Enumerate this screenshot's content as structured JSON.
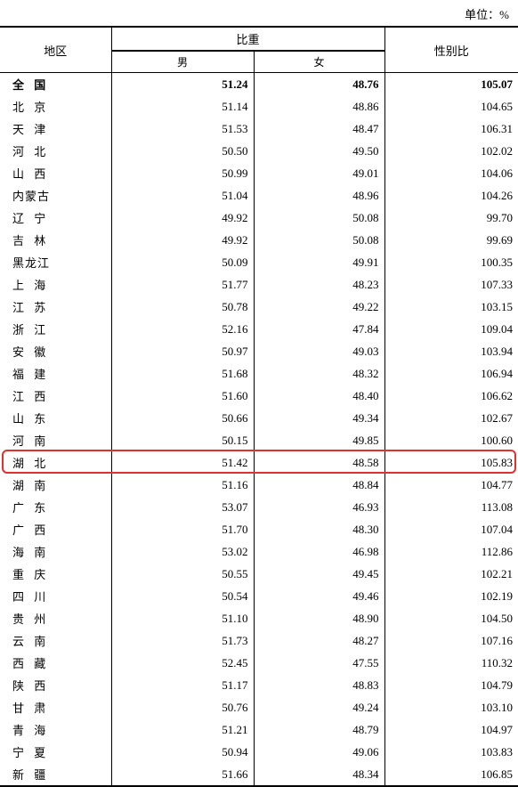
{
  "unit_label": "单位：%",
  "columns": {
    "region": "地区",
    "proportion": "比重",
    "male": "男",
    "female": "女",
    "ratio": "性别比"
  },
  "highlight_region": "湖 北",
  "highlight_color": "#e03030",
  "rows": [
    {
      "region": "全  国",
      "male": "51.24",
      "female": "48.76",
      "ratio": "105.07",
      "total": true
    },
    {
      "region": "北  京",
      "male": "51.14",
      "female": "48.86",
      "ratio": "104.65"
    },
    {
      "region": "天  津",
      "male": "51.53",
      "female": "48.47",
      "ratio": "106.31"
    },
    {
      "region": "河  北",
      "male": "50.50",
      "female": "49.50",
      "ratio": "102.02"
    },
    {
      "region": "山  西",
      "male": "50.99",
      "female": "49.01",
      "ratio": "104.06"
    },
    {
      "region": "内蒙古",
      "male": "51.04",
      "female": "48.96",
      "ratio": "104.26",
      "tight": true
    },
    {
      "region": "辽  宁",
      "male": "49.92",
      "female": "50.08",
      "ratio": "99.70"
    },
    {
      "region": "吉  林",
      "male": "49.92",
      "female": "50.08",
      "ratio": "99.69"
    },
    {
      "region": "黑龙江",
      "male": "50.09",
      "female": "49.91",
      "ratio": "100.35",
      "tight": true
    },
    {
      "region": "上  海",
      "male": "51.77",
      "female": "48.23",
      "ratio": "107.33"
    },
    {
      "region": "江  苏",
      "male": "50.78",
      "female": "49.22",
      "ratio": "103.15"
    },
    {
      "region": "浙  江",
      "male": "52.16",
      "female": "47.84",
      "ratio": "109.04"
    },
    {
      "region": "安  徽",
      "male": "50.97",
      "female": "49.03",
      "ratio": "103.94"
    },
    {
      "region": "福  建",
      "male": "51.68",
      "female": "48.32",
      "ratio": "106.94"
    },
    {
      "region": "江  西",
      "male": "51.60",
      "female": "48.40",
      "ratio": "106.62"
    },
    {
      "region": "山  东",
      "male": "50.66",
      "female": "49.34",
      "ratio": "102.67"
    },
    {
      "region": "河  南",
      "male": "50.15",
      "female": "49.85",
      "ratio": "100.60"
    },
    {
      "region": "湖  北",
      "male": "51.42",
      "female": "48.58",
      "ratio": "105.83"
    },
    {
      "region": "湖  南",
      "male": "51.16",
      "female": "48.84",
      "ratio": "104.77"
    },
    {
      "region": "广  东",
      "male": "53.07",
      "female": "46.93",
      "ratio": "113.08"
    },
    {
      "region": "广  西",
      "male": "51.70",
      "female": "48.30",
      "ratio": "107.04"
    },
    {
      "region": "海  南",
      "male": "53.02",
      "female": "46.98",
      "ratio": "112.86"
    },
    {
      "region": "重  庆",
      "male": "50.55",
      "female": "49.45",
      "ratio": "102.21"
    },
    {
      "region": "四  川",
      "male": "50.54",
      "female": "49.46",
      "ratio": "102.19"
    },
    {
      "region": "贵  州",
      "male": "51.10",
      "female": "48.90",
      "ratio": "104.50"
    },
    {
      "region": "云  南",
      "male": "51.73",
      "female": "48.27",
      "ratio": "107.16"
    },
    {
      "region": "西  藏",
      "male": "52.45",
      "female": "47.55",
      "ratio": "110.32"
    },
    {
      "region": "陕  西",
      "male": "51.17",
      "female": "48.83",
      "ratio": "104.79"
    },
    {
      "region": "甘  肃",
      "male": "50.76",
      "female": "49.24",
      "ratio": "103.10"
    },
    {
      "region": "青  海",
      "male": "51.21",
      "female": "48.79",
      "ratio": "104.97"
    },
    {
      "region": "宁  夏",
      "male": "50.94",
      "female": "49.06",
      "ratio": "103.83"
    },
    {
      "region": "新  疆",
      "male": "51.66",
      "female": "48.34",
      "ratio": "106.85"
    }
  ]
}
